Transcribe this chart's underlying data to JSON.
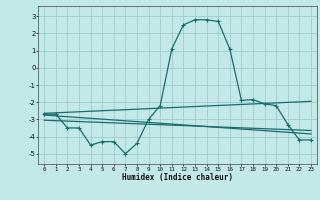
{
  "title": "",
  "xlabel": "Humidex (Indice chaleur)",
  "bg_color": "#c2e8e8",
  "grid_color": "#a0cccc",
  "line_color": "#1a6b6b",
  "xlim": [
    -0.5,
    23.5
  ],
  "ylim": [
    -5.6,
    3.6
  ],
  "xticks": [
    0,
    1,
    2,
    3,
    4,
    5,
    6,
    7,
    8,
    9,
    10,
    11,
    12,
    13,
    14,
    15,
    16,
    17,
    18,
    19,
    20,
    21,
    22,
    23
  ],
  "yticks": [
    -5,
    -4,
    -3,
    -2,
    -1,
    0,
    1,
    2,
    3
  ],
  "main_x": [
    0,
    1,
    2,
    3,
    4,
    5,
    6,
    7,
    8,
    9,
    10,
    11,
    12,
    13,
    14,
    15,
    16,
    17,
    18,
    19,
    20,
    21,
    22,
    23
  ],
  "main_y": [
    -2.7,
    -2.7,
    -3.5,
    -3.5,
    -4.5,
    -4.3,
    -4.3,
    -5.0,
    -4.4,
    -3.0,
    -2.2,
    1.1,
    2.5,
    2.8,
    2.8,
    2.7,
    1.1,
    -1.9,
    -1.85,
    -2.1,
    -2.2,
    -3.3,
    -4.2,
    -4.2
  ],
  "line1_x": [
    0,
    23
  ],
  "line1_y": [
    -2.65,
    -1.95
  ],
  "line2_x": [
    0,
    23
  ],
  "line2_y": [
    -2.75,
    -3.85
  ],
  "line3_x": [
    0,
    23
  ],
  "line3_y": [
    -3.05,
    -3.65
  ]
}
